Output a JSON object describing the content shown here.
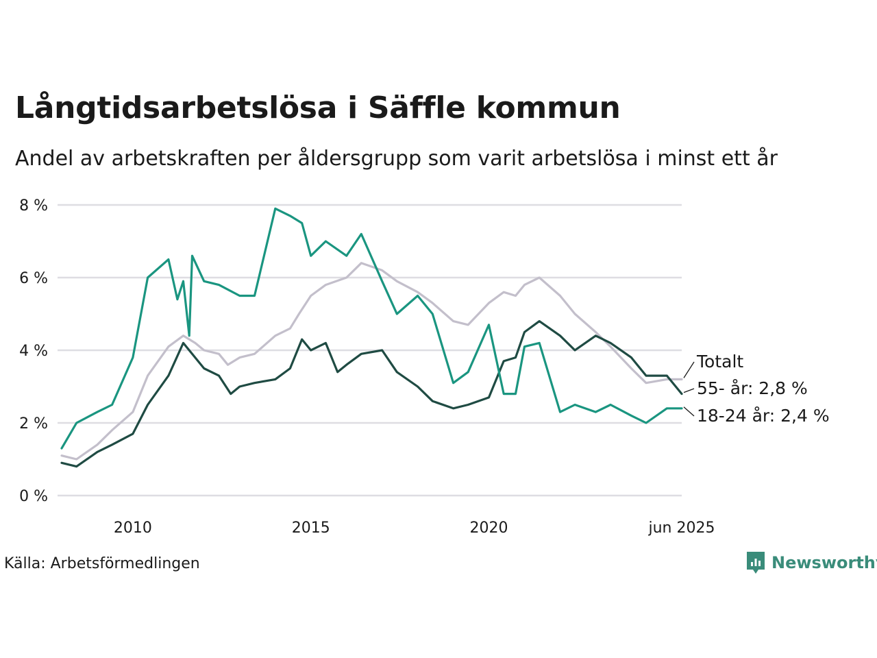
{
  "title": "Långtidsarbetslösa i Säffle kommun",
  "subtitle": "Andel av arbetskraften per åldersgrupp som varit arbetslösa i minst ett år",
  "source": "Källa: Arbetsförmedlingen",
  "brand": "Newsworthy",
  "colors": {
    "totalt": "#c3bfcb",
    "age55": "#1f4b43",
    "age1824": "#1a9580",
    "grid": "#dedde2",
    "brand": "#3a8c7a"
  },
  "chart_data": {
    "type": "line",
    "ylim": [
      0,
      8
    ],
    "yticks": [
      0,
      2,
      4,
      6,
      8
    ],
    "ytick_labels": [
      "0 %",
      "2 %",
      "4 %",
      "6 %",
      "8 %"
    ],
    "xlim": [
      "2008-01",
      "2025-06"
    ],
    "xticks": [
      {
        "x": "2010-01",
        "label": "2010"
      },
      {
        "x": "2015-01",
        "label": "2015"
      },
      {
        "x": "2020-01",
        "label": "2020"
      },
      {
        "x": "2025-06",
        "label": "jun 2025"
      }
    ],
    "grid": true,
    "legend": "direct labels at line ends (right)",
    "series": [
      {
        "name": "Totalt",
        "label": "Totalt",
        "color": "#c3bfcb",
        "points": [
          [
            "2008-01",
            1.1
          ],
          [
            "2008-06",
            1.0
          ],
          [
            "2009-01",
            1.4
          ],
          [
            "2009-06",
            1.8
          ],
          [
            "2010-01",
            2.3
          ],
          [
            "2010-06",
            3.3
          ],
          [
            "2011-01",
            4.1
          ],
          [
            "2011-06",
            4.4
          ],
          [
            "2011-10",
            4.2
          ],
          [
            "2012-01",
            4.0
          ],
          [
            "2012-06",
            3.9
          ],
          [
            "2012-09",
            3.6
          ],
          [
            "2013-01",
            3.8
          ],
          [
            "2013-06",
            3.9
          ],
          [
            "2014-01",
            4.4
          ],
          [
            "2014-06",
            4.6
          ],
          [
            "2014-09",
            5.0
          ],
          [
            "2015-01",
            5.5
          ],
          [
            "2015-06",
            5.8
          ],
          [
            "2016-01",
            6.0
          ],
          [
            "2016-06",
            6.4
          ],
          [
            "2017-01",
            6.2
          ],
          [
            "2017-06",
            5.9
          ],
          [
            "2018-01",
            5.6
          ],
          [
            "2018-06",
            5.3
          ],
          [
            "2019-01",
            4.8
          ],
          [
            "2019-06",
            4.7
          ],
          [
            "2020-01",
            5.3
          ],
          [
            "2020-06",
            5.6
          ],
          [
            "2020-10",
            5.5
          ],
          [
            "2021-01",
            5.8
          ],
          [
            "2021-06",
            6.0
          ],
          [
            "2022-01",
            5.5
          ],
          [
            "2022-06",
            5.0
          ],
          [
            "2023-01",
            4.5
          ],
          [
            "2023-06",
            4.1
          ],
          [
            "2024-01",
            3.5
          ],
          [
            "2024-06",
            3.1
          ],
          [
            "2025-01",
            3.2
          ],
          [
            "2025-06",
            3.2
          ]
        ]
      },
      {
        "name": "55- år",
        "label": "55- år: 2,8 %",
        "color": "#1f4b43",
        "points": [
          [
            "2008-01",
            0.9
          ],
          [
            "2008-06",
            0.8
          ],
          [
            "2009-01",
            1.2
          ],
          [
            "2009-06",
            1.4
          ],
          [
            "2010-01",
            1.7
          ],
          [
            "2010-06",
            2.5
          ],
          [
            "2011-01",
            3.3
          ],
          [
            "2011-06",
            4.2
          ],
          [
            "2012-01",
            3.5
          ],
          [
            "2012-06",
            3.3
          ],
          [
            "2012-10",
            2.8
          ],
          [
            "2013-01",
            3.0
          ],
          [
            "2013-06",
            3.1
          ],
          [
            "2014-01",
            3.2
          ],
          [
            "2014-06",
            3.5
          ],
          [
            "2014-10",
            4.3
          ],
          [
            "2015-01",
            4.0
          ],
          [
            "2015-06",
            4.2
          ],
          [
            "2015-10",
            3.4
          ],
          [
            "2016-01",
            3.6
          ],
          [
            "2016-06",
            3.9
          ],
          [
            "2017-01",
            4.0
          ],
          [
            "2017-06",
            3.4
          ],
          [
            "2018-01",
            3.0
          ],
          [
            "2018-06",
            2.6
          ],
          [
            "2019-01",
            2.4
          ],
          [
            "2019-06",
            2.5
          ],
          [
            "2020-01",
            2.7
          ],
          [
            "2020-06",
            3.7
          ],
          [
            "2020-10",
            3.8
          ],
          [
            "2021-01",
            4.5
          ],
          [
            "2021-06",
            4.8
          ],
          [
            "2022-01",
            4.4
          ],
          [
            "2022-06",
            4.0
          ],
          [
            "2023-01",
            4.4
          ],
          [
            "2023-06",
            4.2
          ],
          [
            "2024-01",
            3.8
          ],
          [
            "2024-06",
            3.3
          ],
          [
            "2025-01",
            3.3
          ],
          [
            "2025-06",
            2.8
          ]
        ]
      },
      {
        "name": "18-24 år",
        "label": "18-24 år: 2,4 %",
        "color": "#1a9580",
        "points": [
          [
            "2008-01",
            1.3
          ],
          [
            "2008-06",
            2.0
          ],
          [
            "2009-01",
            2.3
          ],
          [
            "2009-06",
            2.5
          ],
          [
            "2010-01",
            3.8
          ],
          [
            "2010-06",
            6.0
          ],
          [
            "2011-01",
            6.5
          ],
          [
            "2011-04",
            5.4
          ],
          [
            "2011-06",
            5.9
          ],
          [
            "2011-08",
            4.4
          ],
          [
            "2011-09",
            6.6
          ],
          [
            "2012-01",
            5.9
          ],
          [
            "2012-06",
            5.8
          ],
          [
            "2013-01",
            5.5
          ],
          [
            "2013-06",
            5.5
          ],
          [
            "2014-01",
            7.9
          ],
          [
            "2014-06",
            7.7
          ],
          [
            "2014-10",
            7.5
          ],
          [
            "2015-01",
            6.6
          ],
          [
            "2015-06",
            7.0
          ],
          [
            "2016-01",
            6.6
          ],
          [
            "2016-06",
            7.2
          ],
          [
            "2017-01",
            5.9
          ],
          [
            "2017-06",
            5.0
          ],
          [
            "2018-01",
            5.5
          ],
          [
            "2018-06",
            5.0
          ],
          [
            "2019-01",
            3.1
          ],
          [
            "2019-06",
            3.4
          ],
          [
            "2020-01",
            4.7
          ],
          [
            "2020-06",
            2.8
          ],
          [
            "2020-10",
            2.8
          ],
          [
            "2021-01",
            4.1
          ],
          [
            "2021-06",
            4.2
          ],
          [
            "2022-01",
            2.3
          ],
          [
            "2022-06",
            2.5
          ],
          [
            "2023-01",
            2.3
          ],
          [
            "2023-06",
            2.5
          ],
          [
            "2024-01",
            2.2
          ],
          [
            "2024-06",
            2.0
          ],
          [
            "2025-01",
            2.4
          ],
          [
            "2025-06",
            2.4
          ]
        ]
      }
    ]
  }
}
